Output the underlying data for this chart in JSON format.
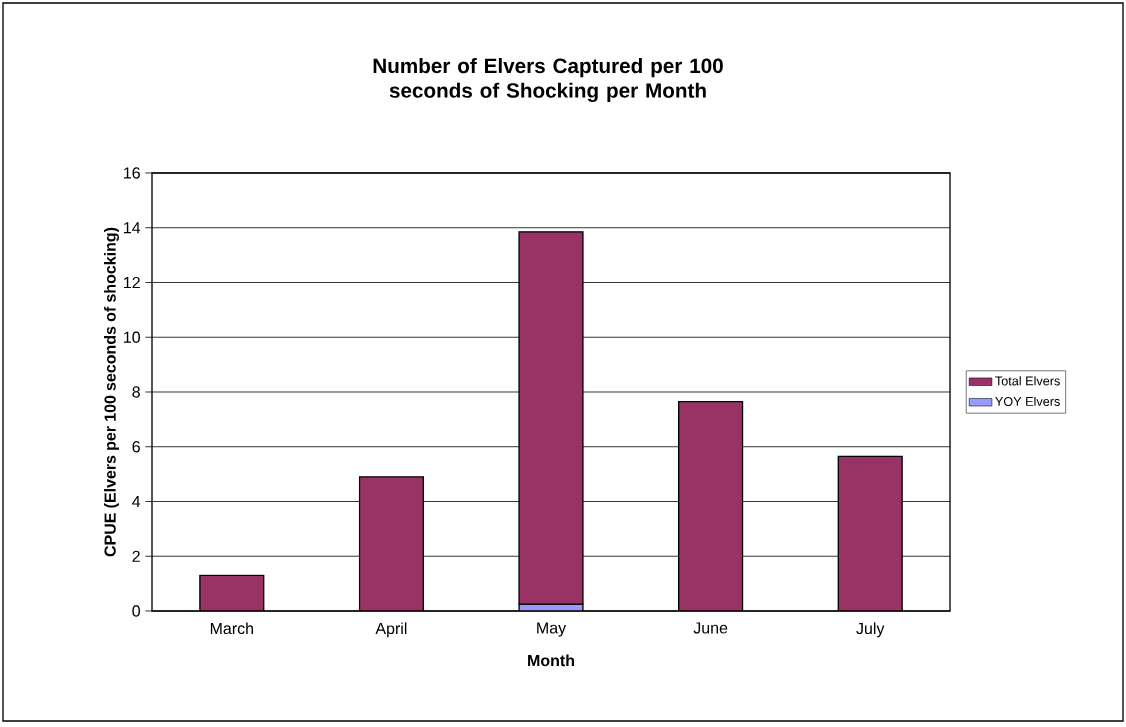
{
  "chart_data": {
    "type": "bar",
    "title": "Number of Elvers Captured per 100 seconds of Shocking per Month",
    "xlabel": "Month",
    "ylabel": "CPUE (Elvers per 100 seconds of shocking)",
    "categories": [
      "March",
      "April",
      "May",
      "June",
      "July"
    ],
    "stacked": true,
    "series": [
      {
        "name": "YOY Elvers",
        "color": "#9999ff",
        "values": [
          null,
          null,
          0.25,
          null,
          null
        ]
      },
      {
        "name": "Total Elvers",
        "color": "#993366",
        "values": [
          1.3,
          4.9,
          13.6,
          7.65,
          5.65
        ]
      }
    ],
    "ylim": [
      0,
      16
    ],
    "yticks": [
      0,
      2,
      4,
      6,
      8,
      10,
      12,
      14,
      16
    ],
    "grid": "y",
    "legend": "right"
  }
}
